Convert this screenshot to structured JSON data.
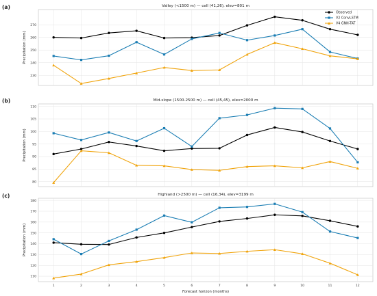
{
  "chart_data": [
    {
      "type": "line",
      "panel_label": "(a)",
      "title": "Valley (<1500 m) — cell (41,26), elev=801 m",
      "xlabel": "",
      "ylabel": "Precipitation (mm)",
      "x": [
        1,
        2,
        3,
        4,
        5,
        6,
        7,
        8,
        9,
        10,
        11,
        12
      ],
      "ylim": [
        222,
        282
      ],
      "yticks": [
        230,
        240,
        250,
        260,
        270
      ],
      "grid": true,
      "legend": "top-right",
      "series": [
        {
          "name": "Observed",
          "color": "#000000",
          "marker": "circle",
          "values": [
            260,
            259.5,
            263.5,
            265.2,
            259.5,
            259.8,
            261.5,
            269.5,
            276.3,
            273.5,
            266.5,
            262
          ]
        },
        {
          "name": "V2 ConvLSTM",
          "color": "#1a7db3",
          "marker": "square",
          "values": [
            245.3,
            242.2,
            245.5,
            256.2,
            246.5,
            258.8,
            263.5,
            257.8,
            261.5,
            266.5,
            248.5,
            243.3
          ]
        },
        {
          "name": "V4 GNN-TAT",
          "color": "#f0a30a",
          "marker": "triangle",
          "values": [
            238,
            223.5,
            227.5,
            231.8,
            236.2,
            233.8,
            234.3,
            246.5,
            255.8,
            251,
            245.4,
            243
          ]
        }
      ]
    },
    {
      "type": "line",
      "panel_label": "(b)",
      "title": "Mid-slope (1500-2500 m) — cell (45,45), elev=2000 m",
      "xlabel": "",
      "ylabel": "Precipitation (mm)",
      "x": [
        1,
        2,
        3,
        4,
        5,
        6,
        7,
        8,
        9,
        10,
        11,
        12
      ],
      "ylim": [
        78,
        111
      ],
      "yticks": [
        80,
        85,
        90,
        95,
        100,
        105,
        110
      ],
      "grid": true,
      "series": [
        {
          "name": "Observed",
          "color": "#000000",
          "marker": "circle",
          "values": [
            91,
            93,
            95.8,
            94.2,
            92.3,
            93.2,
            93.3,
            98.6,
            101.6,
            99.8,
            96.2,
            93
          ]
        },
        {
          "name": "V2 ConvLSTM",
          "color": "#1a7db3",
          "marker": "square",
          "values": [
            99.3,
            96.6,
            99.6,
            96.2,
            101.3,
            94,
            105.3,
            106.6,
            109.3,
            109,
            101.2,
            87.7
          ]
        },
        {
          "name": "V4 GNN-TAT",
          "color": "#f0a30a",
          "marker": "triangle",
          "values": [
            79.6,
            92.3,
            91.5,
            86.5,
            86.3,
            84.8,
            84.5,
            86,
            86.3,
            85.5,
            88,
            85.3
          ]
        }
      ]
    },
    {
      "type": "line",
      "panel_label": "(c)",
      "title": "Highland (>2500 m) — cell (16,34), elev=3199 m",
      "xlabel": "Forecast horizon (months)",
      "ylabel": "Precipitation (mm)",
      "x": [
        1,
        2,
        3,
        4,
        5,
        6,
        7,
        8,
        9,
        10,
        11,
        12
      ],
      "ylim": [
        105,
        182
      ],
      "yticks": [
        110,
        120,
        130,
        140,
        150,
        160,
        170,
        180
      ],
      "xticks": [
        1,
        2,
        3,
        4,
        5,
        6,
        7,
        8,
        9,
        10,
        11,
        12
      ],
      "grid": true,
      "series": [
        {
          "name": "Observed",
          "color": "#000000",
          "marker": "circle",
          "values": [
            141,
            139.5,
            139.3,
            145.8,
            150,
            155.4,
            160.6,
            163.3,
            166.7,
            165.7,
            161.2,
            156
          ]
        },
        {
          "name": "V2 ConvLSTM",
          "color": "#1a7db3",
          "marker": "square",
          "values": [
            144.2,
            130.5,
            142.6,
            153,
            166,
            159.8,
            173.2,
            174,
            176.8,
            169.2,
            151.3,
            145.3
          ]
        },
        {
          "name": "V4 GNN-TAT",
          "color": "#f0a30a",
          "marker": "triangle",
          "values": [
            108.3,
            112,
            120.5,
            123.5,
            127.2,
            131.5,
            131,
            133,
            134.5,
            130.7,
            122,
            111.3
          ]
        }
      ]
    }
  ]
}
